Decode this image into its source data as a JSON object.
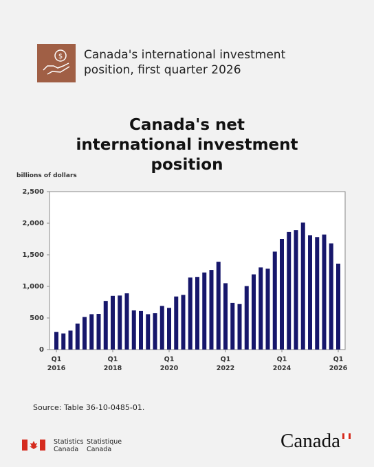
{
  "header": {
    "title": "Canada's international investment position, first quarter 2026"
  },
  "chart_data": {
    "type": "bar",
    "title": "Canada's net international investment position",
    "y_axis_label": "billions of dollars",
    "categories": [
      "Q1 2016",
      null,
      null,
      null,
      null,
      null,
      null,
      null,
      "Q1 2018",
      null,
      null,
      null,
      null,
      null,
      null,
      null,
      "Q1 2020",
      null,
      null,
      null,
      null,
      null,
      null,
      null,
      "Q1 2022",
      null,
      null,
      null,
      null,
      null,
      null,
      null,
      "Q1 2024",
      null,
      null,
      null,
      null,
      null,
      null,
      null,
      "Q1 2026"
    ],
    "values": [
      280,
      255,
      300,
      410,
      515,
      560,
      565,
      770,
      850,
      855,
      890,
      620,
      610,
      560,
      575,
      690,
      660,
      840,
      865,
      1140,
      1150,
      1220,
      1260,
      1390,
      1050,
      740,
      720,
      1005,
      1190,
      1300,
      1280,
      1550,
      1750,
      1860,
      1890,
      2010,
      1810,
      1780,
      1820,
      1680,
      1360
    ],
    "color": "#17176b",
    "ylim": [
      0,
      2500
    ],
    "yticks": [
      0,
      500,
      {
        "value": 1000,
        "label": "1,000"
      },
      {
        "value": 1500,
        "label": "1,500"
      },
      {
        "value": 2000,
        "label": "2,000"
      },
      {
        "value": 2500,
        "label": "2,500"
      }
    ],
    "source": "Source: Table 36-10-0485-01."
  },
  "footer": {
    "agency_en": "Statistics Canada",
    "agency_fr": "Statistique Canada",
    "wordmark": "Canada"
  }
}
